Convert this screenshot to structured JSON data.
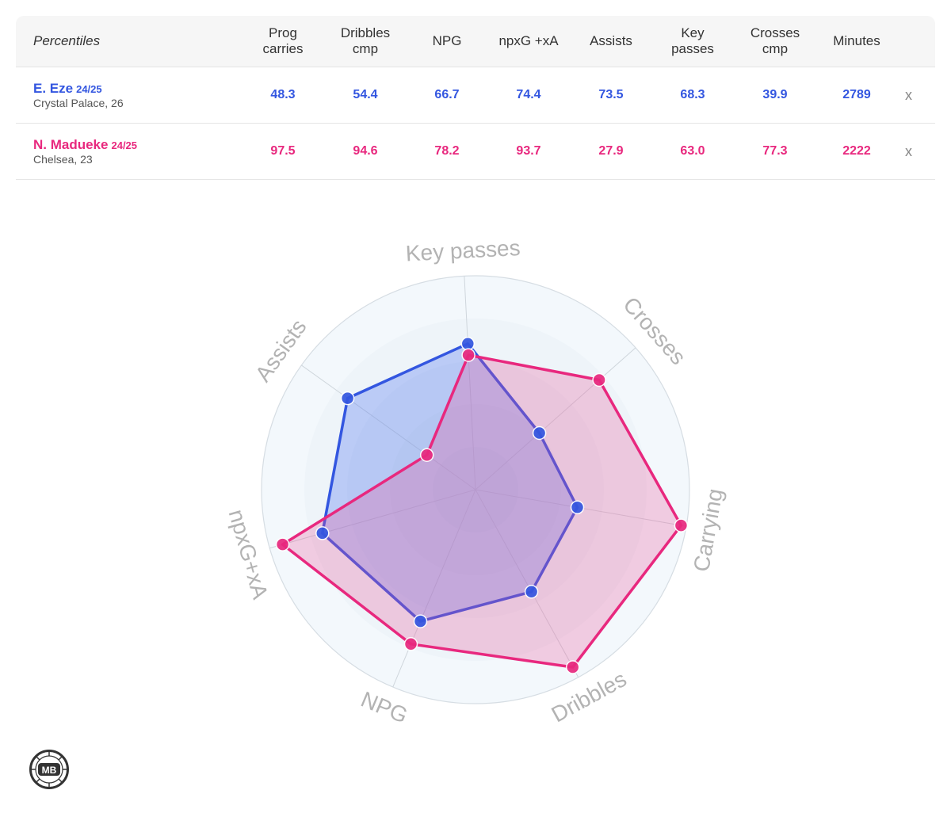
{
  "table": {
    "title": "Percentiles",
    "columns": [
      "Prog\ncarries",
      "Dribbles\ncmp",
      "NPG",
      "npxG +xA",
      "Assists",
      "Key\npasses",
      "Crosses\ncmp",
      "Minutes"
    ],
    "players": [
      {
        "name": "E. Eze",
        "season": "24/25",
        "team": "Crystal Palace, 26",
        "color": "#3356e0",
        "values": [
          "48.3",
          "54.4",
          "66.7",
          "74.4",
          "73.5",
          "68.3",
          "39.9",
          "2789"
        ],
        "remove_label": "x"
      },
      {
        "name": "N. Madueke",
        "season": "24/25",
        "team": "Chelsea, 23",
        "color": "#e8287e",
        "values": [
          "97.5",
          "94.6",
          "78.2",
          "93.7",
          "27.9",
          "63.0",
          "77.3",
          "2222"
        ],
        "remove_label": "x"
      }
    ]
  },
  "chart_data": {
    "type": "radar",
    "range": [
      0,
      100
    ],
    "axes": [
      "Key passes",
      "Crosses",
      "Carrying",
      "Dribbles",
      "NPG",
      "npxG+xA",
      "Assists"
    ],
    "series": [
      {
        "name": "E. Eze 24/25",
        "color": "#3356e0",
        "fill": "rgba(70,110,240,0.30)",
        "values": [
          68.3,
          39.9,
          48.3,
          54.4,
          66.7,
          74.4,
          73.5
        ]
      },
      {
        "name": "N. Madueke 24/25",
        "color": "#e8287e",
        "fill": "rgba(232,80,150,0.27)",
        "values": [
          63.0,
          77.3,
          97.5,
          94.6,
          78.2,
          93.7,
          27.9
        ]
      }
    ]
  },
  "logo": {
    "text": "MB"
  }
}
